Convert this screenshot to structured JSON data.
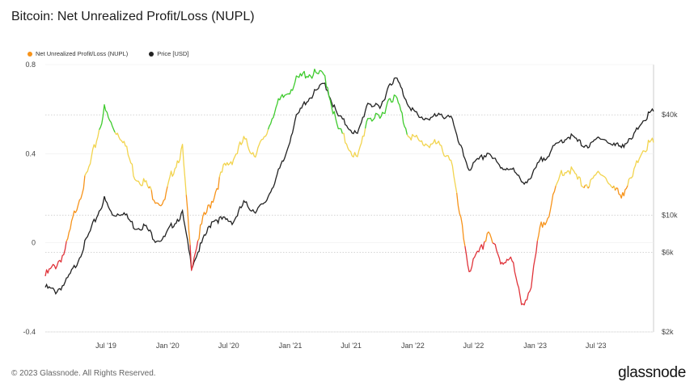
{
  "header": {
    "title": "Bitcoin: Net Unrealized Profit/Loss (NUPL)"
  },
  "footer": {
    "copyright": "© 2023 Glassnode. All Rights Reserved.",
    "logo": "glassnode"
  },
  "colors": {
    "price_line": "#222222",
    "nupl_legend": "#f7931a",
    "zone_capitulation": "#e0333a",
    "zone_hope_fear": "#f7931a",
    "zone_optimism_anxiety": "#f2d44e",
    "zone_belief_denial": "#3fcb2e",
    "grid": "#bbbbbb"
  },
  "chart_data": {
    "type": "line",
    "title": "Bitcoin: Net Unrealized Profit/Loss (NUPL)",
    "legend": {
      "placement": "top-left"
    },
    "grid": true,
    "x_ticks": [
      "Jul '19",
      "Jan '20",
      "Jul '20",
      "Jan '21",
      "Jul '21",
      "Jan '22",
      "Jul '22",
      "Jan '23",
      "Jul '23"
    ],
    "x_tick_dates": [
      "2019-07-01",
      "2020-01-01",
      "2020-07-01",
      "2021-01-01",
      "2021-07-01",
      "2022-01-01",
      "2022-07-01",
      "2023-01-01",
      "2023-07-01"
    ],
    "x_range": [
      "2019-01-01",
      "2023-12-20"
    ],
    "y_left": {
      "ylim": [
        -0.4,
        0.8
      ],
      "ticks": [
        "0.8",
        "0.4",
        "0",
        "-0.4"
      ],
      "tick_values": [
        0.8,
        0.4,
        0,
        -0.4
      ]
    },
    "y_right": {
      "scale": "log",
      "ylim": [
        2000,
        80000
      ],
      "ticks": [
        "$40k",
        "$10k",
        "$6k",
        "$2k"
      ],
      "tick_values": [
        40000,
        10000,
        6000,
        2000
      ]
    },
    "series": [
      {
        "name": "Net Unrealized Profit/Loss (NUPL)",
        "axis": "left",
        "zone_colors": true,
        "points": [
          [
            "2019-01-01",
            -0.15
          ],
          [
            "2019-02-01",
            -0.1
          ],
          [
            "2019-03-01",
            -0.04
          ],
          [
            "2019-04-01",
            0.15
          ],
          [
            "2019-05-15",
            0.35
          ],
          [
            "2019-06-26",
            0.6
          ],
          [
            "2019-07-20",
            0.52
          ],
          [
            "2019-08-20",
            0.47
          ],
          [
            "2019-09-25",
            0.3
          ],
          [
            "2019-10-25",
            0.27
          ],
          [
            "2019-11-25",
            0.2
          ],
          [
            "2019-12-20",
            0.17
          ],
          [
            "2020-01-15",
            0.32
          ],
          [
            "2020-02-14",
            0.42
          ],
          [
            "2020-03-12",
            -0.1
          ],
          [
            "2020-04-15",
            0.1
          ],
          [
            "2020-05-15",
            0.2
          ],
          [
            "2020-06-15",
            0.33
          ],
          [
            "2020-07-15",
            0.38
          ],
          [
            "2020-08-15",
            0.46
          ],
          [
            "2020-09-15",
            0.4
          ],
          [
            "2020-10-15",
            0.46
          ],
          [
            "2020-11-15",
            0.6
          ],
          [
            "2020-12-15",
            0.66
          ],
          [
            "2021-01-15",
            0.72
          ],
          [
            "2021-02-15",
            0.76
          ],
          [
            "2021-04-14",
            0.75
          ],
          [
            "2021-05-20",
            0.52
          ],
          [
            "2021-07-20",
            0.37
          ],
          [
            "2021-08-20",
            0.57
          ],
          [
            "2021-09-25",
            0.55
          ],
          [
            "2021-10-25",
            0.66
          ],
          [
            "2021-11-15",
            0.64
          ],
          [
            "2021-12-15",
            0.5
          ],
          [
            "2022-01-20",
            0.45
          ],
          [
            "2022-03-15",
            0.44
          ],
          [
            "2022-04-25",
            0.38
          ],
          [
            "2022-05-12",
            0.2
          ],
          [
            "2022-06-18",
            -0.12
          ],
          [
            "2022-07-25",
            -0.03
          ],
          [
            "2022-08-15",
            0.06
          ],
          [
            "2022-09-20",
            -0.1
          ],
          [
            "2022-10-20",
            -0.05
          ],
          [
            "2022-11-21",
            -0.28
          ],
          [
            "2022-12-20",
            -0.2
          ],
          [
            "2023-01-15",
            0.06
          ],
          [
            "2023-02-15",
            0.15
          ],
          [
            "2023-03-20",
            0.32
          ],
          [
            "2023-04-15",
            0.33
          ],
          [
            "2023-05-15",
            0.27
          ],
          [
            "2023-06-15",
            0.26
          ],
          [
            "2023-07-15",
            0.33
          ],
          [
            "2023-08-20",
            0.24
          ],
          [
            "2023-09-15",
            0.22
          ],
          [
            "2023-10-15",
            0.28
          ],
          [
            "2023-11-15",
            0.42
          ],
          [
            "2023-12-20",
            0.45
          ]
        ]
      },
      {
        "name": "Price [USD]",
        "axis": "right",
        "points": [
          [
            "2019-01-01",
            3700
          ],
          [
            "2019-02-01",
            3500
          ],
          [
            "2019-03-01",
            3900
          ],
          [
            "2019-04-01",
            5000
          ],
          [
            "2019-05-15",
            8000
          ],
          [
            "2019-06-26",
            12500
          ],
          [
            "2019-07-20",
            10000
          ],
          [
            "2019-08-20",
            10500
          ],
          [
            "2019-09-25",
            8500
          ],
          [
            "2019-10-25",
            8600
          ],
          [
            "2019-11-25",
            7200
          ],
          [
            "2019-12-20",
            7200
          ],
          [
            "2020-01-15",
            8800
          ],
          [
            "2020-02-14",
            10200
          ],
          [
            "2020-03-12",
            5000
          ],
          [
            "2020-04-15",
            7000
          ],
          [
            "2020-05-15",
            9500
          ],
          [
            "2020-06-15",
            9400
          ],
          [
            "2020-07-15",
            9200
          ],
          [
            "2020-08-15",
            11800
          ],
          [
            "2020-09-15",
            10700
          ],
          [
            "2020-10-15",
            11500
          ],
          [
            "2020-11-15",
            16000
          ],
          [
            "2020-12-15",
            22000
          ],
          [
            "2021-01-15",
            37000
          ],
          [
            "2021-02-15",
            48000
          ],
          [
            "2021-04-14",
            62000
          ],
          [
            "2021-05-20",
            40000
          ],
          [
            "2021-07-20",
            30000
          ],
          [
            "2021-08-20",
            48000
          ],
          [
            "2021-09-25",
            43000
          ],
          [
            "2021-10-25",
            63000
          ],
          [
            "2021-11-15",
            65000
          ],
          [
            "2021-12-15",
            48000
          ],
          [
            "2022-01-20",
            38000
          ],
          [
            "2022-03-15",
            39000
          ],
          [
            "2022-04-25",
            40000
          ],
          [
            "2022-05-12",
            29000
          ],
          [
            "2022-06-18",
            19000
          ],
          [
            "2022-07-25",
            22000
          ],
          [
            "2022-08-15",
            24000
          ],
          [
            "2022-09-20",
            19000
          ],
          [
            "2022-10-20",
            19500
          ],
          [
            "2022-11-21",
            15800
          ],
          [
            "2022-12-20",
            16800
          ],
          [
            "2023-01-15",
            21000
          ],
          [
            "2023-02-15",
            24000
          ],
          [
            "2023-03-20",
            28000
          ],
          [
            "2023-04-15",
            30000
          ],
          [
            "2023-05-15",
            27000
          ],
          [
            "2023-06-15",
            26000
          ],
          [
            "2023-07-15",
            30000
          ],
          [
            "2023-08-20",
            26000
          ],
          [
            "2023-09-15",
            26500
          ],
          [
            "2023-10-15",
            28000
          ],
          [
            "2023-11-15",
            37000
          ],
          [
            "2023-12-20",
            42000
          ]
        ]
      }
    ]
  }
}
